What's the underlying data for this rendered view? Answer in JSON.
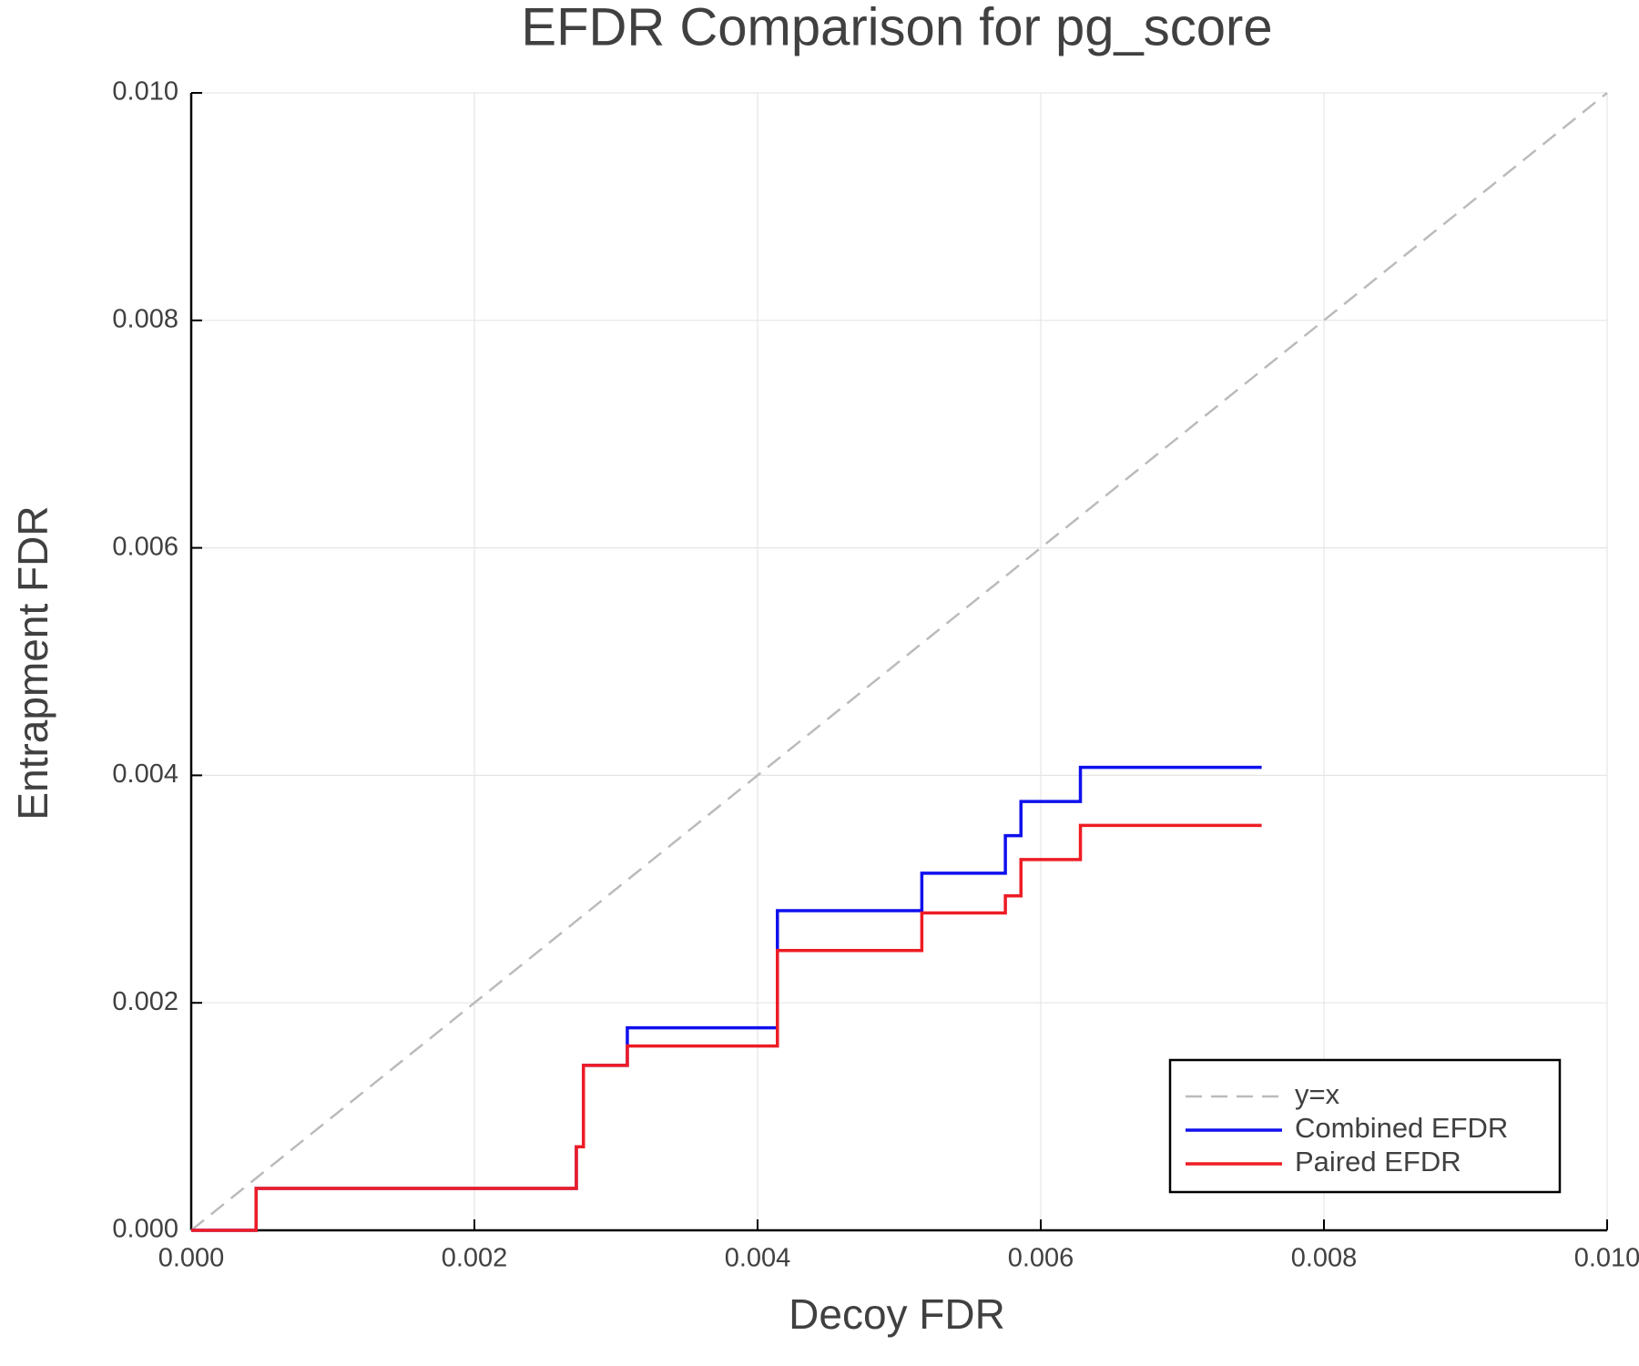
{
  "chart_data": {
    "type": "line",
    "title": "EFDR Comparison for pg_score",
    "x_label": "Decoy FDR",
    "y_label": "Entrapment FDR",
    "xlim": [
      0,
      0.01
    ],
    "ylim": [
      0,
      0.01
    ],
    "xticks": [
      {
        "value": 0,
        "label": "0.000"
      },
      {
        "value": 0.002,
        "label": "0.002"
      },
      {
        "value": 0.004,
        "label": "0.004"
      },
      {
        "value": 0.006,
        "label": "0.006"
      },
      {
        "value": 0.008,
        "label": "0.008"
      },
      {
        "value": 0.01,
        "label": "0.010"
      }
    ],
    "yticks": [
      {
        "value": 0,
        "label": "0.000"
      },
      {
        "value": 0.002,
        "label": "0.002"
      },
      {
        "value": 0.004,
        "label": "0.004"
      },
      {
        "value": 0.006,
        "label": "0.006"
      },
      {
        "value": 0.008,
        "label": "0.008"
      },
      {
        "value": 0.01,
        "label": "0.010"
      }
    ],
    "grid": true,
    "legend": "bottom-right",
    "series": [
      {
        "name": "y=x",
        "color": "#bbbbbb",
        "dashed": true,
        "x": [
          0,
          0.01
        ],
        "values": [
          0,
          0.01
        ]
      },
      {
        "name": "Combined EFDR",
        "color": "#1010ee",
        "dashed": false,
        "x": [
          0,
          0.000458,
          0.000458,
          0.00272,
          0.00272,
          0.00277,
          0.00277,
          0.00308,
          0.00308,
          0.00414,
          0.00414,
          0.00516,
          0.00516,
          0.00575,
          0.00575,
          0.00586,
          0.00586,
          0.00628,
          0.00628,
          0.00756
        ],
        "values": [
          0,
          0,
          0.000368,
          0.000368,
          0.000735,
          0.000735,
          0.00145,
          0.00145,
          0.00178,
          0.00178,
          0.00281,
          0.00281,
          0.00314,
          0.00314,
          0.00347,
          0.00347,
          0.00377,
          0.00377,
          0.00407,
          0.00407
        ]
      },
      {
        "name": "Paired EFDR",
        "color": "#ee1c24",
        "dashed": false,
        "x": [
          0,
          0.000458,
          0.000458,
          0.00272,
          0.00272,
          0.00277,
          0.00277,
          0.00308,
          0.00308,
          0.00414,
          0.00414,
          0.00516,
          0.00516,
          0.00575,
          0.00575,
          0.00586,
          0.00586,
          0.00628,
          0.00628,
          0.00756
        ],
        "values": [
          0,
          0,
          0.000368,
          0.000368,
          0.000735,
          0.000735,
          0.00145,
          0.00145,
          0.00162,
          0.00162,
          0.00246,
          0.00246,
          0.00279,
          0.00279,
          0.00294,
          0.00294,
          0.00326,
          0.00326,
          0.00356,
          0.00356
        ]
      }
    ]
  }
}
